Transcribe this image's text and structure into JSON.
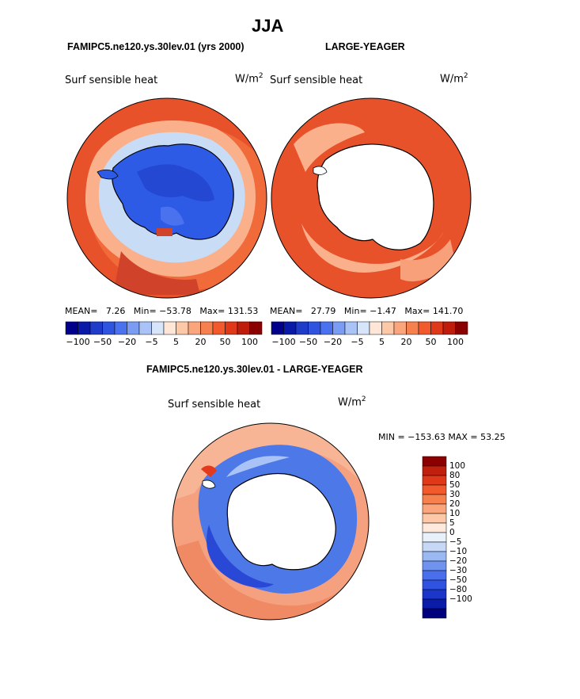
{
  "page": {
    "season": "JJA",
    "left_title": "FAMIPC5.ne120.ys.30lev.01 (yrs 2000)",
    "right_title": "LARGE-YEAGER",
    "diff_title": "FAMIPC5.ne120.ys.30lev.01 - LARGE-YEAGER"
  },
  "panels": {
    "left": {
      "field": "Surf sensible heat",
      "units": "W/m",
      "units_sup": "2",
      "stats": {
        "mean_label": "MEAN=",
        "mean": "7.26",
        "min_label": "Min=",
        "min": "−53.78",
        "max_label": "Max=",
        "max": "131.53"
      }
    },
    "right": {
      "field": "Surf sensible heat",
      "units": "W/m",
      "units_sup": "2",
      "stats": {
        "mean_label": "MEAN=",
        "mean": "27.79",
        "min_label": "Min=",
        "min": "−1.47",
        "max_label": "Max=",
        "max": "141.70"
      }
    },
    "diff": {
      "field": "Surf sensible heat",
      "units": "W/m",
      "units_sup": "2",
      "minmax": "MIN = −153.63  MAX =  53.25"
    }
  },
  "horizontal_colorbar": {
    "colors": [
      "#00008B",
      "#0A1AA8",
      "#1E3CC8",
      "#2F55E0",
      "#4A72EE",
      "#7A9CF2",
      "#A9C3F7",
      "#D6E5FA",
      "#FFE6D6",
      "#FDC8A8",
      "#FBA57C",
      "#F7804F",
      "#F05A2C",
      "#E0391A",
      "#BF1C0C",
      "#8B0000"
    ],
    "labels": [
      "−100",
      "−50",
      "−20",
      "−5",
      "5",
      "20",
      "50",
      "100"
    ]
  },
  "vertical_colorbar": {
    "colors": [
      "#8B0000",
      "#C0200E",
      "#E0391A",
      "#F05A2C",
      "#F7804F",
      "#FBA57C",
      "#FDC8A8",
      "#FFE8DC",
      "#E8F0FA",
      "#C6D8F6",
      "#9AB9F2",
      "#6F93EE",
      "#4A6FEA",
      "#2F52E0",
      "#1B36C8",
      "#0A1CA8",
      "#00007E"
    ],
    "labels": [
      "100",
      "80",
      "50",
      "30",
      "20",
      "10",
      "5",
      "0",
      "−5",
      "−10",
      "−20",
      "−30",
      "−50",
      "−80",
      "−100"
    ]
  },
  "map_colors": {
    "ocean_warm": "#E8522A",
    "ocean_light": "#FBB08C",
    "sea_ice_cool": "#C8DCF6",
    "ice_blue": "#2E5BE6",
    "ice_blue_dark": "#2448D2",
    "land_blank": "#FFFFFF",
    "diff_ocean": "#F5A07E",
    "diff_blue": "#4D78E8",
    "diff_blue_dark": "#2A48D6"
  }
}
